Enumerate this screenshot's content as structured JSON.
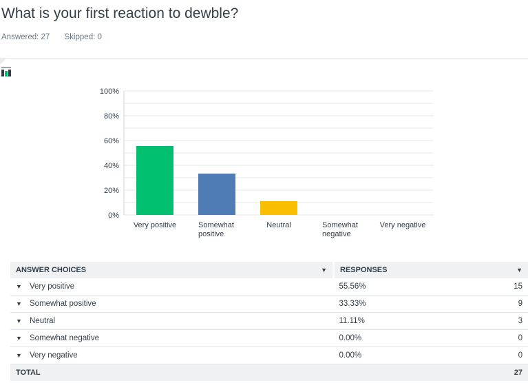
{
  "question": {
    "title": "What is your first reaction to dewble?",
    "answered_label": "Answered: 27",
    "skipped_label": "Skipped: 0"
  },
  "icons": {
    "chart_toggle": "bar-chart-icon",
    "sort": "caret-down-icon",
    "row_expand": "caret-down-icon"
  },
  "colors": {
    "very_positive": "#00bf6f",
    "somewhat_positive": "#507cb6",
    "neutral": "#f9be00",
    "somewhat_negative": "#6bc8cd",
    "very_negative": "#ff8b4f"
  },
  "chart_data": {
    "type": "bar",
    "categories": [
      "Very positive",
      "Somewhat positive",
      "Neutral",
      "Somewhat negative",
      "Very negative"
    ],
    "values": [
      55.56,
      33.33,
      11.11,
      0,
      0
    ],
    "ylim": [
      0,
      100
    ],
    "yticks": [
      "0%",
      "20%",
      "40%",
      "60%",
      "80%",
      "100%"
    ],
    "grid": true,
    "title": "",
    "xlabel": "",
    "ylabel": ""
  },
  "table": {
    "headers": {
      "choices": "ANSWER CHOICES",
      "responses": "RESPONSES"
    },
    "rows": [
      {
        "label": "Very positive",
        "percent": "55.56%",
        "count": "15"
      },
      {
        "label": "Somewhat positive",
        "percent": "33.33%",
        "count": "9"
      },
      {
        "label": "Neutral",
        "percent": "11.11%",
        "count": "3"
      },
      {
        "label": "Somewhat negative",
        "percent": "0.00%",
        "count": "0"
      },
      {
        "label": "Very negative",
        "percent": "0.00%",
        "count": "0"
      }
    ],
    "total": {
      "label": "TOTAL",
      "count": "27"
    }
  }
}
